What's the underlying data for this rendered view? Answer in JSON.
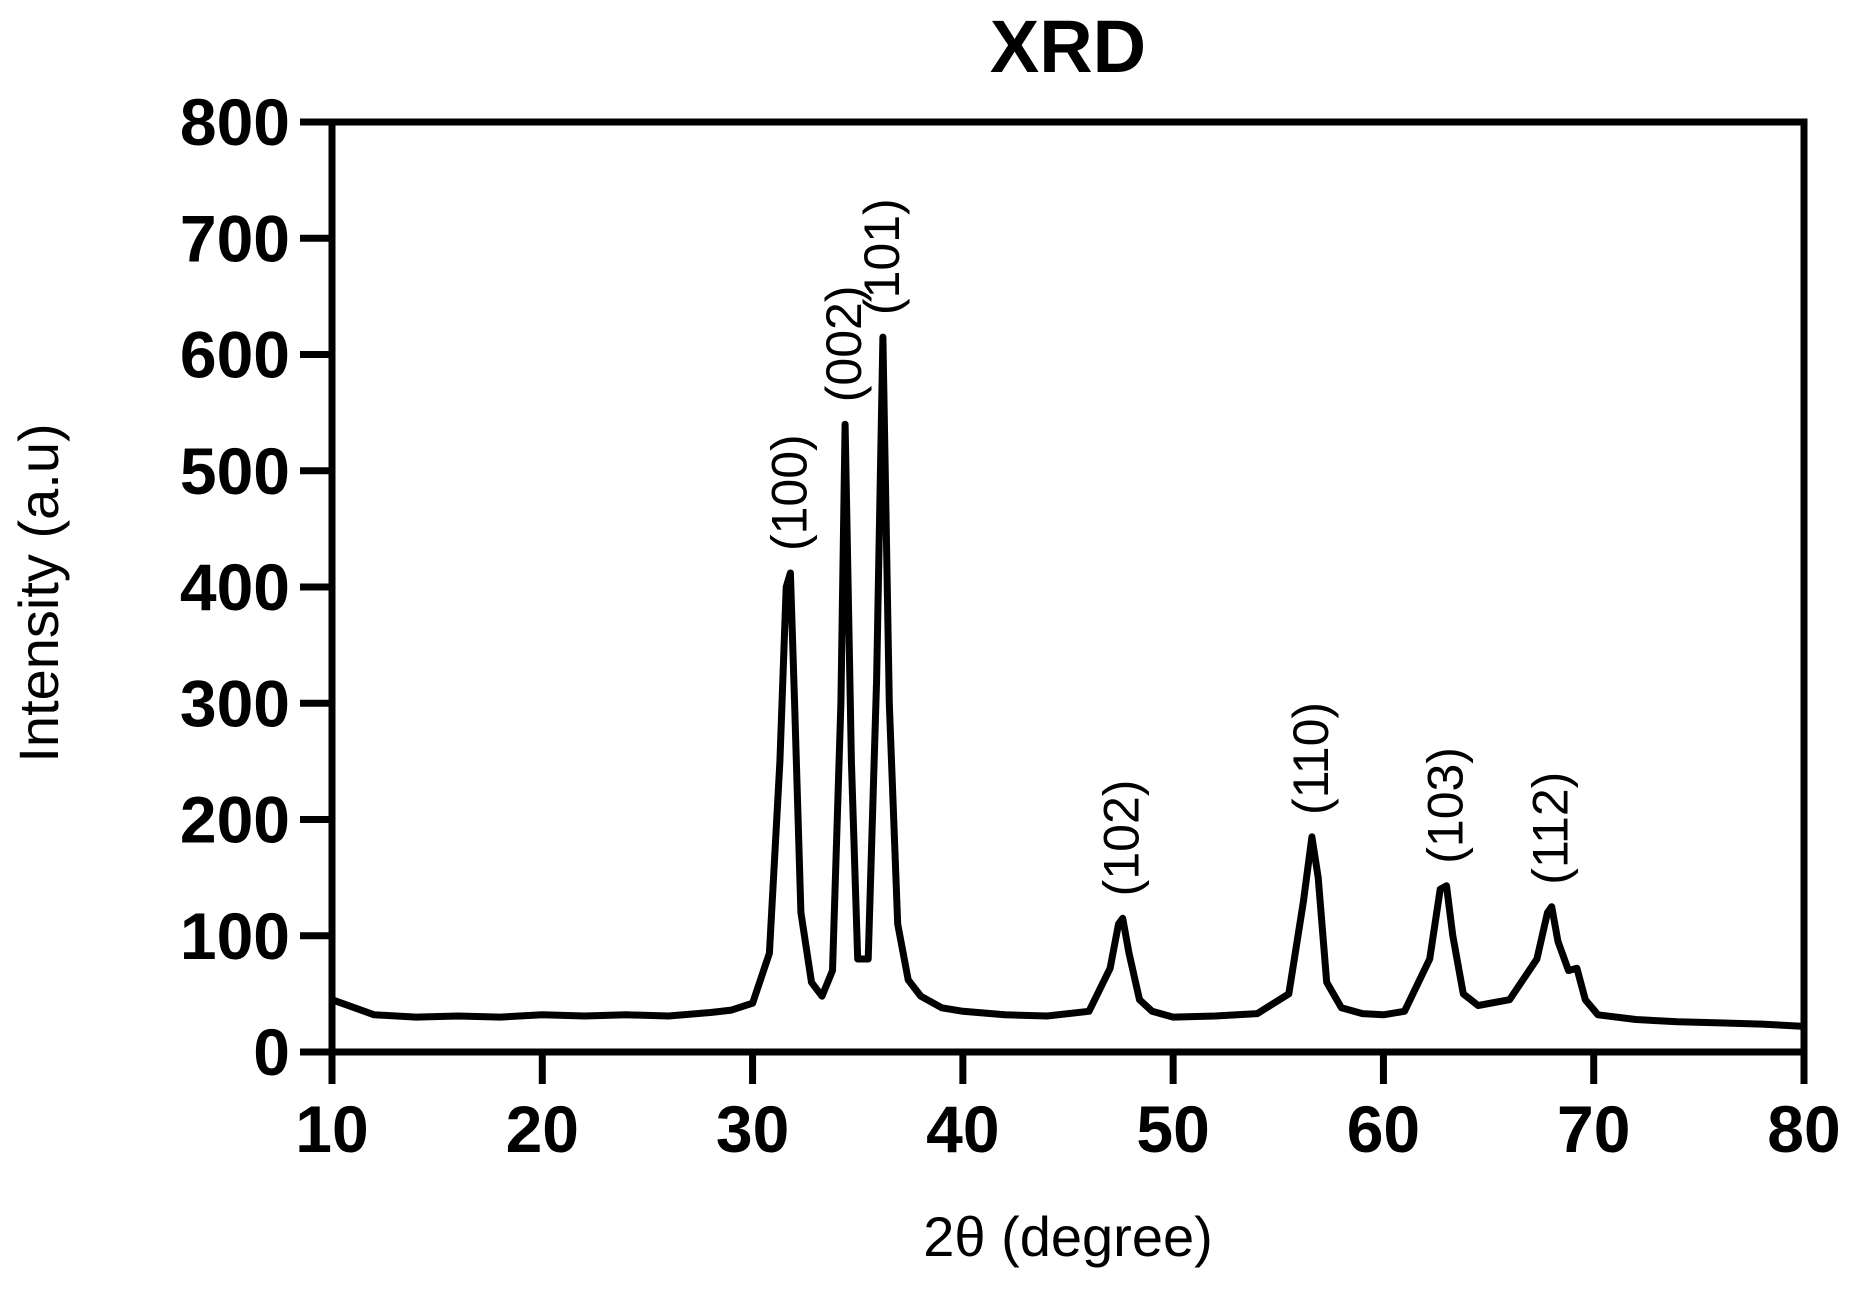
{
  "chart_data": {
    "type": "line",
    "title": "XRD",
    "xlabel": "2θ (degree)",
    "ylabel": "Intensity (a.u)",
    "xlim": [
      10,
      80
    ],
    "ylim": [
      0,
      800
    ],
    "xticks": [
      10,
      20,
      30,
      40,
      50,
      60,
      70,
      80
    ],
    "yticks": [
      0,
      100,
      200,
      300,
      400,
      500,
      600,
      700,
      800
    ],
    "grid": false,
    "series": [
      {
        "color": "#000000",
        "x": [
          10,
          12,
          14,
          16,
          18,
          20,
          22,
          24,
          26,
          28,
          29,
          30,
          30.8,
          31.3,
          31.6,
          31.8,
          32.0,
          32.3,
          32.8,
          33.3,
          33.8,
          34.2,
          34.4,
          34.7,
          35.0,
          35.5,
          35.9,
          36.2,
          36.5,
          36.9,
          37.4,
          38,
          39,
          40,
          42,
          44,
          46,
          47.0,
          47.4,
          47.6,
          47.9,
          48.4,
          49,
          50,
          52,
          54,
          55.5,
          56.2,
          56.6,
          56.9,
          57.3,
          58,
          59,
          60,
          61,
          62.2,
          62.7,
          63.0,
          63.3,
          63.8,
          64.5,
          66,
          67.3,
          67.8,
          68.0,
          68.3,
          68.8,
          69.2,
          69.6,
          70.2,
          72,
          74,
          76,
          78,
          80
        ],
        "y": [
          45,
          32,
          30,
          31,
          30,
          32,
          31,
          32,
          31,
          34,
          36,
          42,
          85,
          250,
          400,
          412,
          300,
          120,
          60,
          48,
          70,
          300,
          540,
          250,
          80,
          80,
          320,
          615,
          300,
          110,
          62,
          48,
          38,
          35,
          32,
          31,
          35,
          72,
          110,
          115,
          85,
          45,
          35,
          30,
          31,
          33,
          50,
          130,
          185,
          150,
          60,
          38,
          33,
          32,
          35,
          80,
          140,
          143,
          100,
          50,
          40,
          45,
          80,
          120,
          125,
          95,
          70,
          72,
          45,
          32,
          28,
          26,
          25,
          24,
          22
        ]
      }
    ],
    "annotations": [
      {
        "text": "(100)",
        "x": 31.8,
        "y": 412
      },
      {
        "text": "(002)",
        "x": 34.4,
        "y": 540
      },
      {
        "text": "(101)",
        "x": 36.2,
        "y": 615
      },
      {
        "text": "(102)",
        "x": 47.6,
        "y": 115
      },
      {
        "text": "(110)",
        "x": 56.6,
        "y": 185
      },
      {
        "text": "(103)",
        "x": 63.0,
        "y": 143
      },
      {
        "text": "(112)",
        "x": 68.0,
        "y": 125
      }
    ]
  }
}
